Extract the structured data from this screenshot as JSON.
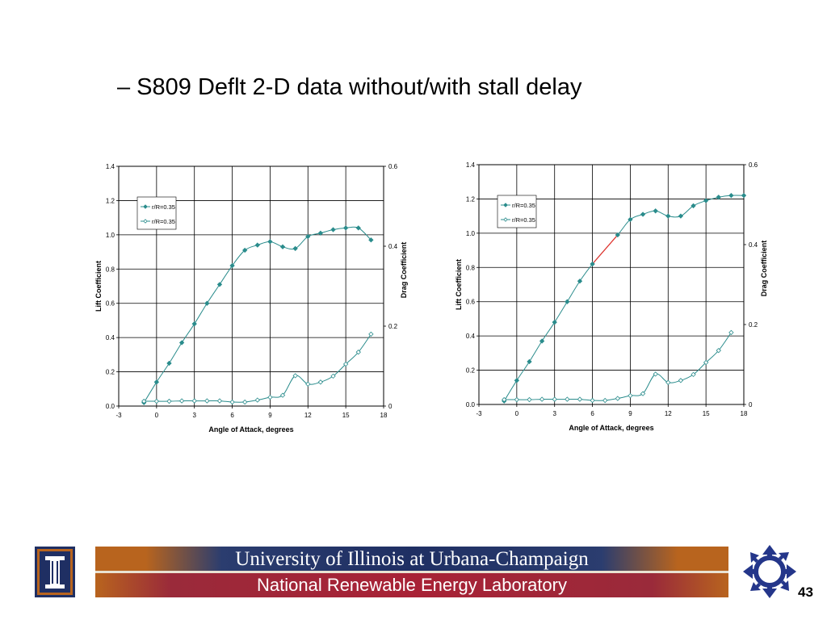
{
  "slide": {
    "title": "– S809 Deflt 2-D data without/with stall delay",
    "footer": {
      "university": "University of Illinois at Urbana-Champaign",
      "lab": "National Renewable Energy Laboratory",
      "page_number": "43"
    },
    "logos": [
      "uiuc-column-logo",
      "nrel-arrows-logo"
    ]
  },
  "colors": {
    "series": "#2a8c8c",
    "highlight": "#e8302a",
    "grid": "#000000"
  },
  "chart_data": [
    {
      "type": "line",
      "xlabel": "Angle of Attack, degrees",
      "ylabel": "Lift Coefficient",
      "y2label": "Drag Coefficient",
      "xlim": [
        -3,
        18
      ],
      "xticks": [
        "-3",
        "0",
        "3",
        "6",
        "9",
        "12",
        "15",
        "18"
      ],
      "ylim": [
        0,
        1.4
      ],
      "yticks": [
        "0.0",
        "0.2",
        "0.4",
        "0.6",
        "0.8",
        "1.0",
        "1.2",
        "1.4"
      ],
      "y2lim": [
        0,
        0.6
      ],
      "y2ticks": [
        "0",
        "0.2",
        "0.4",
        "0.6"
      ],
      "legend_position": "top-left",
      "grid": true,
      "series": [
        {
          "name": "r/R=0.35",
          "axis": "left",
          "marker": "filled-diamond",
          "x": [
            -1,
            0,
            1,
            2,
            3,
            4,
            5,
            6,
            7,
            8,
            9,
            10,
            11,
            12,
            13,
            14,
            15,
            16,
            17
          ],
          "y": [
            0.02,
            0.14,
            0.25,
            0.37,
            0.48,
            0.6,
            0.71,
            0.82,
            0.91,
            0.94,
            0.96,
            0.93,
            0.92,
            0.99,
            1.01,
            1.03,
            1.04,
            1.04,
            0.97
          ]
        },
        {
          "name": "r/R=0.35",
          "axis": "right",
          "marker": "open-diamond",
          "x": [
            -1,
            0,
            1,
            2,
            3,
            4,
            5,
            6,
            7,
            8,
            9,
            10,
            11,
            12,
            13,
            14,
            15,
            16,
            17
          ],
          "y": [
            0.012,
            0.012,
            0.012,
            0.013,
            0.013,
            0.013,
            0.013,
            0.01,
            0.01,
            0.015,
            0.022,
            0.027,
            0.076,
            0.055,
            0.06,
            0.075,
            0.105,
            0.135,
            0.18
          ]
        }
      ]
    },
    {
      "type": "line",
      "xlabel": "Angle of Attack, degrees",
      "ylabel": "Lift Coefficient",
      "y2label": "Drag Coefficient",
      "xlim": [
        -3,
        18
      ],
      "xticks": [
        "-3",
        "0",
        "3",
        "6",
        "9",
        "12",
        "15",
        "18"
      ],
      "ylim": [
        0,
        1.4
      ],
      "yticks": [
        "0.0",
        "0.2",
        "0.4",
        "0.6",
        "0.8",
        "1.0",
        "1.2",
        "1.4"
      ],
      "y2lim": [
        0,
        0.6
      ],
      "y2ticks": [
        "0",
        "0.2",
        "0.4",
        "0.6"
      ],
      "legend_position": "top-left",
      "grid": true,
      "highlight_segment": {
        "x": [
          6,
          8
        ],
        "color": "#e8302a"
      },
      "series": [
        {
          "name": "r/R=0.35",
          "axis": "left",
          "marker": "filled-diamond",
          "x": [
            -1,
            0,
            1,
            2,
            3,
            4,
            5,
            6,
            8,
            9,
            10,
            11,
            12,
            13,
            14,
            15,
            16,
            17,
            18
          ],
          "y": [
            0.02,
            0.14,
            0.25,
            0.37,
            0.48,
            0.6,
            0.72,
            0.82,
            0.99,
            1.08,
            1.11,
            1.13,
            1.1,
            1.1,
            1.16,
            1.19,
            1.21,
            1.22,
            1.22
          ]
        },
        {
          "name": "r/R=0.35",
          "axis": "right",
          "marker": "open-diamond",
          "x": [
            -1,
            0,
            1,
            2,
            3,
            4,
            5,
            6,
            7,
            8,
            9,
            10,
            11,
            12,
            13,
            14,
            15,
            16,
            17
          ],
          "y": [
            0.012,
            0.012,
            0.012,
            0.013,
            0.013,
            0.013,
            0.013,
            0.01,
            0.01,
            0.015,
            0.022,
            0.027,
            0.076,
            0.055,
            0.06,
            0.075,
            0.105,
            0.135,
            0.18
          ]
        }
      ]
    }
  ]
}
